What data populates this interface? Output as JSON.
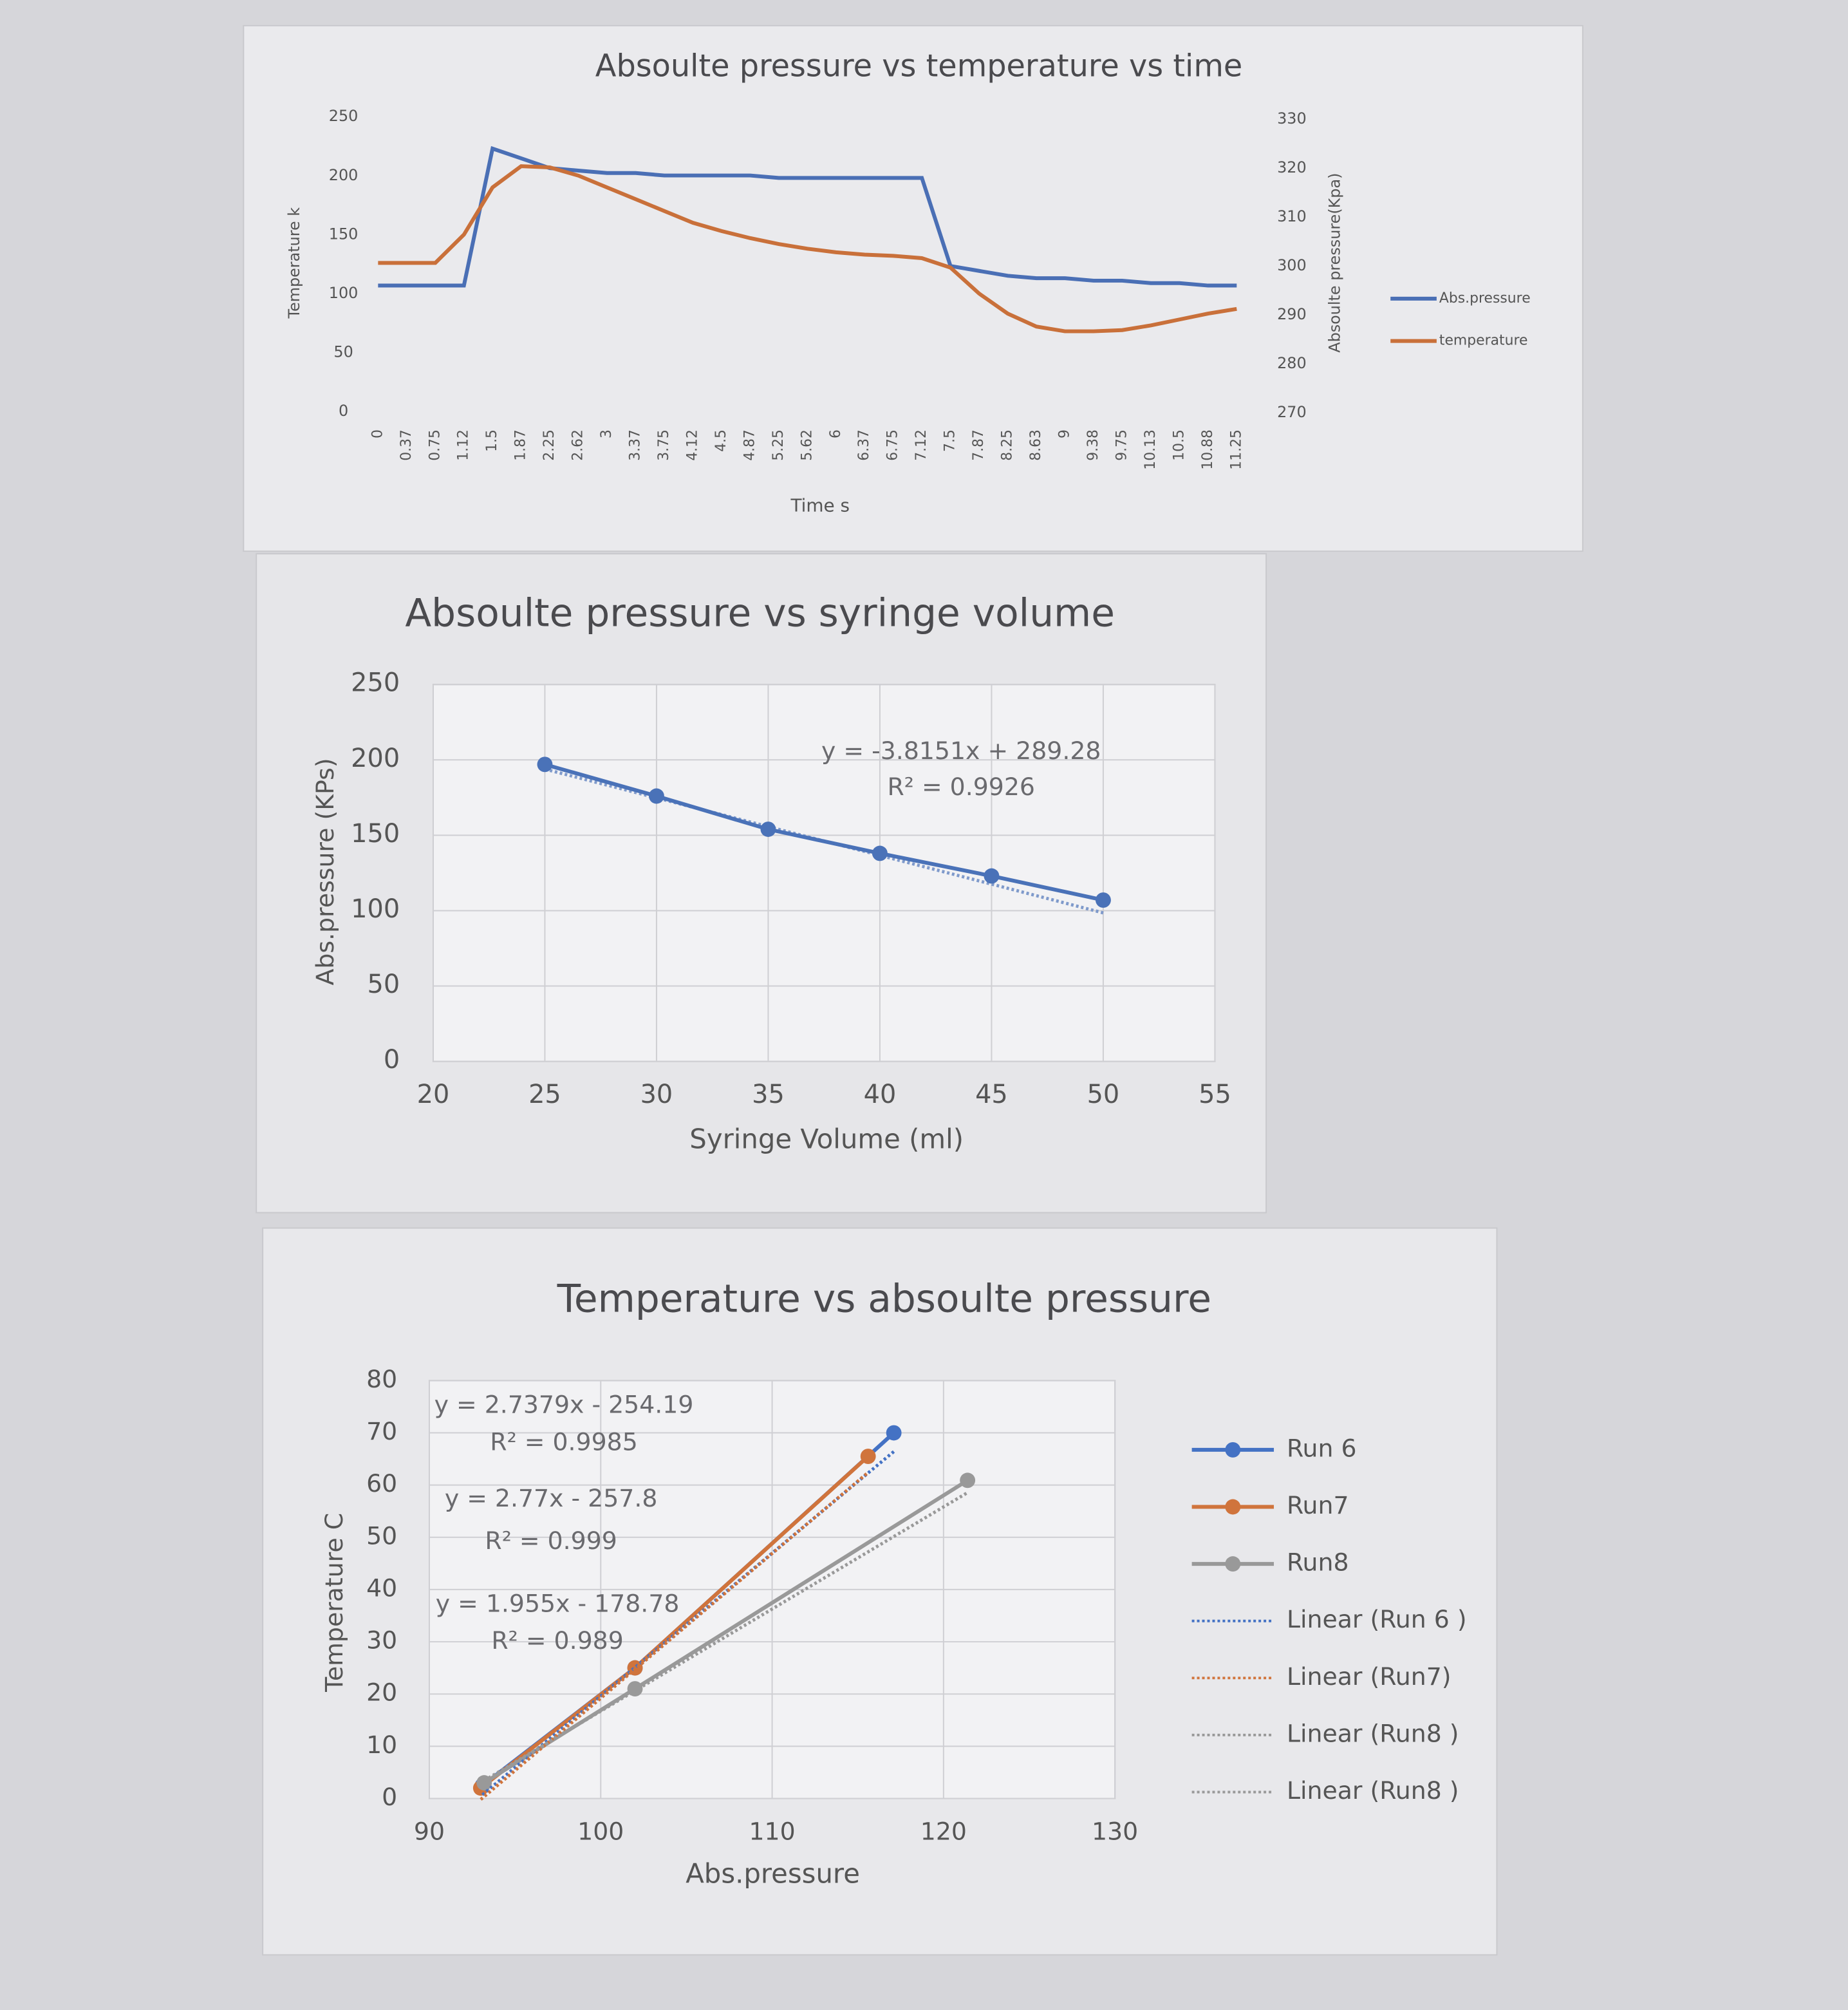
{
  "chart_data": [
    {
      "type": "line",
      "title": "Absoulte pressure vs temperature vs time",
      "xlabel": "Time s",
      "ylabel": "Temperature k",
      "y2label": "Absoulte pressure(Kpa)",
      "categories": [
        "0",
        "0.37",
        "0.75",
        "1.12",
        "1.5",
        "1.87",
        "2.25",
        "2.62",
        "3",
        "3.37",
        "3.75",
        "4.12",
        "4.5",
        "4.87",
        "5.25",
        "5.62",
        "6",
        "6.37",
        "6.75",
        "7.12",
        "7.5",
        "7.87",
        "8.25",
        "8.63",
        "9",
        "9.38",
        "9.75",
        "10.13",
        "10.5",
        "10.88",
        "11.25"
      ],
      "ylim": [
        0,
        250
      ],
      "yticks": [
        0,
        50,
        100,
        150,
        200,
        250
      ],
      "y2lim": [
        270,
        330
      ],
      "y2ticks": [
        270,
        280,
        290,
        300,
        310,
        320,
        330
      ],
      "grid": false,
      "legend": "right",
      "series": [
        {
          "name": "Abs.pressure",
          "color": "#4a6fb5",
          "axis": "y2",
          "values": [
            296,
            296,
            296,
            296,
            324,
            322,
            320,
            319.5,
            319,
            319,
            318.5,
            318.5,
            318.5,
            318.5,
            318,
            318,
            318,
            318,
            318,
            318,
            300,
            299,
            298,
            297.5,
            297.5,
            297,
            297,
            296.5,
            296.5,
            296,
            296
          ]
        },
        {
          "name": "temperature",
          "color": "#c9703a",
          "values": [
            126,
            126,
            126,
            150,
            190,
            208,
            207,
            200,
            190,
            180,
            170,
            160,
            153,
            147,
            142,
            138,
            135,
            133,
            132,
            130,
            122,
            100,
            83,
            72,
            68,
            68,
            69,
            73,
            78,
            83,
            87
          ]
        }
      ]
    },
    {
      "type": "scatter",
      "title": "Absoulte pressure vs syringe volume",
      "xlabel": "Syringe Volume (ml)",
      "ylabel": "Abs.pressure (KPs)",
      "x": [
        25,
        30,
        35,
        40,
        45,
        50
      ],
      "values": [
        197,
        176,
        154,
        138,
        123,
        107
      ],
      "color": "#4a72b8",
      "xlim": [
        20,
        55
      ],
      "xticks": [
        20,
        25,
        30,
        35,
        40,
        45,
        50,
        55
      ],
      "ylim": [
        0,
        250
      ],
      "yticks": [
        0,
        50,
        100,
        150,
        200,
        250
      ],
      "grid": true,
      "trendline": {
        "equation": "y = -3.8151x + 289.28",
        "r2": "R² = 0.9926",
        "slope": -3.8151,
        "intercept": 289.28
      }
    },
    {
      "type": "scatter",
      "title": "Temperature vs absoulte pressure",
      "xlabel": "Abs.pressure",
      "ylabel": "Temperature C",
      "xlim": [
        90,
        130
      ],
      "xticks": [
        90,
        100,
        110,
        120,
        130
      ],
      "ylim": [
        0,
        80
      ],
      "yticks": [
        0,
        10,
        20,
        30,
        40,
        50,
        60,
        70,
        80
      ],
      "grid": true,
      "legend": "right",
      "series": [
        {
          "name": "Run 6",
          "color": "#4472c4",
          "x": [
            93.1,
            102,
            117.1
          ],
          "values": [
            2.5,
            25,
            70
          ]
        },
        {
          "name": "Run7",
          "color": "#d0743c",
          "x": [
            93,
            102,
            115.6
          ],
          "values": [
            2,
            25,
            65.5
          ]
        },
        {
          "name": "Run8",
          "color": "#999999",
          "x": [
            93.2,
            102,
            121.4
          ],
          "values": [
            3,
            21,
            60.9
          ]
        }
      ],
      "trendlines": [
        {
          "name": "Linear (Run 6 )",
          "color": "#4472c4",
          "equation": "y = 2.7379x - 254.19",
          "r2": "R² = 0.9985",
          "slope": 2.7379,
          "intercept": -254.19
        },
        {
          "name": "Linear (Run7)",
          "color": "#d0743c",
          "equation": "y = 2.77x - 257.8",
          "r2": "R² = 0.999",
          "slope": 2.77,
          "intercept": -257.8
        },
        {
          "name": "Linear (Run8 )",
          "color": "#999999",
          "equation": "y = 1.955x - 178.78",
          "r2": "R² = 0.989",
          "slope": 1.955,
          "intercept": -178.78
        },
        {
          "name": "Linear (Run8 )",
          "color": "#999999"
        }
      ]
    }
  ]
}
